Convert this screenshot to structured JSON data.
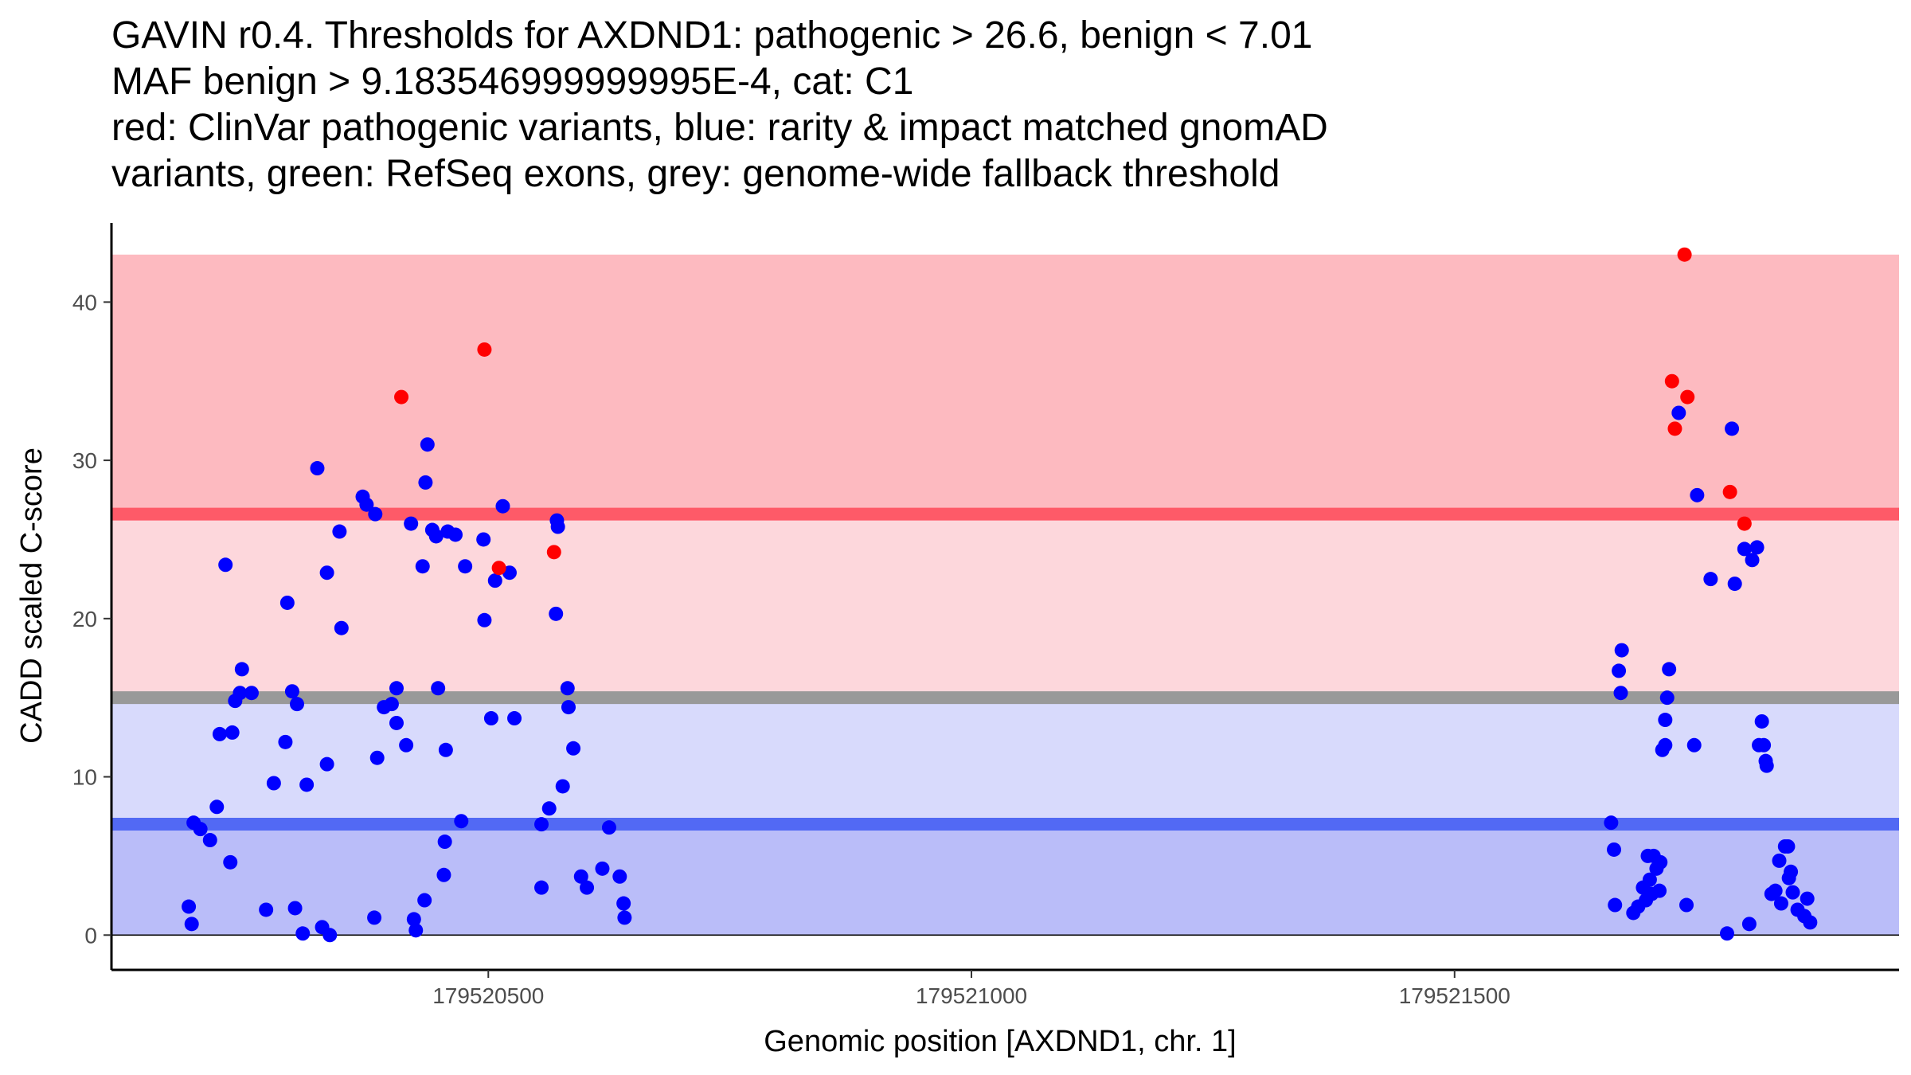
{
  "chart_data": {
    "type": "scatter",
    "title_lines": [
      "GAVIN r0.4. Thresholds for AXDND1: pathogenic > 26.6, benign < 7.01",
      "MAF benign > 9.183546999999995E-4, cat: C1",
      "red: ClinVar pathogenic variants, blue: rarity & impact matched gnomAD",
      "variants, green: RefSeq exons, grey: genome-wide fallback threshold"
    ],
    "xlabel": "Genomic position [AXDND1, chr. 1]",
    "ylabel": "CADD scaled C-score",
    "xlim": [
      179520110,
      179521960
    ],
    "ylim": [
      -2.2,
      45.0
    ],
    "x_ticks": [
      179520500,
      179521000,
      179521500
    ],
    "x_tick_labels": [
      "179520500",
      "179521000",
      "179521500"
    ],
    "y_ticks": [
      0,
      10,
      20,
      30,
      40
    ],
    "y_tick_labels": [
      "0",
      "10",
      "20",
      "30",
      "40"
    ],
    "thresholds": {
      "pathogenic": 26.6,
      "benign": 7.01,
      "fallback": 15.0,
      "max_score": 43.0
    },
    "colors": {
      "pathogenic_band": "#fdbac0",
      "middle_band": "#fdd7dc",
      "benign_upper_band": "#d8dafc",
      "benign_lower_band": "#babdf9",
      "pathogenic_line": "#fe5a68",
      "benign_line": "#5269f4",
      "fallback_line": "#999999",
      "clinvar_point": "#ff0000",
      "gnomad_point": "#0000ff"
    },
    "series": [
      {
        "name": "ClinVar pathogenic",
        "points": [
          [
            179520410,
            34
          ],
          [
            179520496,
            37
          ],
          [
            179520511,
            23.2
          ],
          [
            179520568,
            24.2
          ],
          [
            179521738,
            43
          ],
          [
            179521725,
            35
          ],
          [
            179521741,
            34
          ],
          [
            179521728,
            32
          ],
          [
            179521785,
            28
          ],
          [
            179521800,
            26
          ]
        ]
      },
      {
        "name": "gnomAD matched",
        "points": [
          [
            179520190,
            1.8
          ],
          [
            179520193,
            0.7
          ],
          [
            179520195,
            7.1
          ],
          [
            179520202,
            6.7
          ],
          [
            179520212,
            6.0
          ],
          [
            179520219,
            8.1
          ],
          [
            179520222,
            12.7
          ],
          [
            179520228,
            23.4
          ],
          [
            179520233,
            4.6
          ],
          [
            179520235,
            12.8
          ],
          [
            179520238,
            14.8
          ],
          [
            179520243,
            15.3
          ],
          [
            179520245,
            16.8
          ],
          [
            179520255,
            15.3
          ],
          [
            179520270,
            1.6
          ],
          [
            179520278,
            9.6
          ],
          [
            179520290,
            12.2
          ],
          [
            179520292,
            21
          ],
          [
            179520297,
            15.4
          ],
          [
            179520300,
            1.7
          ],
          [
            179520302,
            14.6
          ],
          [
            179520308,
            0.1
          ],
          [
            179520312,
            9.5
          ],
          [
            179520323,
            29.5
          ],
          [
            179520328,
            0.5
          ],
          [
            179520333,
            10.8
          ],
          [
            179520333,
            22.9
          ],
          [
            179520336,
            0
          ],
          [
            179520346,
            25.5
          ],
          [
            179520348,
            19.4
          ],
          [
            179520370,
            27.7
          ],
          [
            179520374,
            27.2
          ],
          [
            179520383,
            26.6
          ],
          [
            179520382,
            1.1
          ],
          [
            179520385,
            11.2
          ],
          [
            179520392,
            14.4
          ],
          [
            179520400,
            14.6
          ],
          [
            179520405,
            15.6
          ],
          [
            179520405,
            13.4
          ],
          [
            179520415,
            12
          ],
          [
            179520420,
            26
          ],
          [
            179520423,
            1
          ],
          [
            179520425,
            0.3
          ],
          [
            179520434,
            2.2
          ],
          [
            179520432,
            23.3
          ],
          [
            179520435,
            28.6
          ],
          [
            179520437,
            31
          ],
          [
            179520442,
            25.6
          ],
          [
            179520446,
            25.2
          ],
          [
            179520448,
            15.6
          ],
          [
            179520454,
            3.8
          ],
          [
            179520455,
            5.9
          ],
          [
            179520456,
            11.7
          ],
          [
            179520458,
            25.5
          ],
          [
            179520466,
            25.3
          ],
          [
            179520472,
            7.2
          ],
          [
            179520476,
            23.3
          ],
          [
            179520495,
            25
          ],
          [
            179520496,
            19.9
          ],
          [
            179520503,
            13.7
          ],
          [
            179520507,
            22.4
          ],
          [
            179520515,
            27.1
          ],
          [
            179520522,
            22.9
          ],
          [
            179520527,
            13.7
          ],
          [
            179520555,
            3
          ],
          [
            179520555,
            7
          ],
          [
            179520563,
            8
          ],
          [
            179520570,
            20.3
          ],
          [
            179520571,
            26.2
          ],
          [
            179520572,
            25.8
          ],
          [
            179520577,
            9.4
          ],
          [
            179520582,
            15.6
          ],
          [
            179520583,
            14.4
          ],
          [
            179520588,
            11.8
          ],
          [
            179520596,
            3.7
          ],
          [
            179520602,
            3
          ],
          [
            179520618,
            4.2
          ],
          [
            179520625,
            6.8
          ],
          [
            179520636,
            3.7
          ],
          [
            179520640,
            2
          ],
          [
            179520641,
            1.1
          ],
          [
            179521662,
            7.1
          ],
          [
            179521665,
            5.4
          ],
          [
            179521666,
            1.9
          ],
          [
            179521670,
            16.7
          ],
          [
            179521672,
            15.3
          ],
          [
            179521673,
            18
          ],
          [
            179521685,
            1.4
          ],
          [
            179521690,
            1.8
          ],
          [
            179521695,
            3
          ],
          [
            179521698,
            2.2
          ],
          [
            179521700,
            5
          ],
          [
            179521702,
            3.5
          ],
          [
            179521704,
            2.6
          ],
          [
            179521706,
            5
          ],
          [
            179521709,
            4.2
          ],
          [
            179521712,
            2.8
          ],
          [
            179521713,
            4.6
          ],
          [
            179521715,
            11.7
          ],
          [
            179521718,
            12
          ],
          [
            179521718,
            13.6
          ],
          [
            179521720,
            15
          ],
          [
            179521722,
            16.8
          ],
          [
            179521732,
            33
          ],
          [
            179521740,
            1.9
          ],
          [
            179521748,
            12
          ],
          [
            179521751,
            27.8
          ],
          [
            179521765,
            22.5
          ],
          [
            179521782,
            0.1
          ],
          [
            179521787,
            32
          ],
          [
            179521790,
            22.2
          ],
          [
            179521800,
            24.4
          ],
          [
            179521805,
            0.7
          ],
          [
            179521808,
            23.7
          ],
          [
            179521813,
            24.5
          ],
          [
            179521815,
            12
          ],
          [
            179521818,
            13.5
          ],
          [
            179521820,
            12
          ],
          [
            179521822,
            11
          ],
          [
            179521823,
            10.7
          ],
          [
            179521828,
            2.6
          ],
          [
            179521832,
            2.8
          ],
          [
            179521836,
            4.7
          ],
          [
            179521838,
            2
          ],
          [
            179521842,
            5.6
          ],
          [
            179521845,
            5.6
          ],
          [
            179521846,
            3.6
          ],
          [
            179521848,
            4
          ],
          [
            179521850,
            2.7
          ],
          [
            179521855,
            1.6
          ],
          [
            179521862,
            1.2
          ],
          [
            179521865,
            2.3
          ],
          [
            179521868,
            0.8
          ]
        ]
      }
    ]
  }
}
